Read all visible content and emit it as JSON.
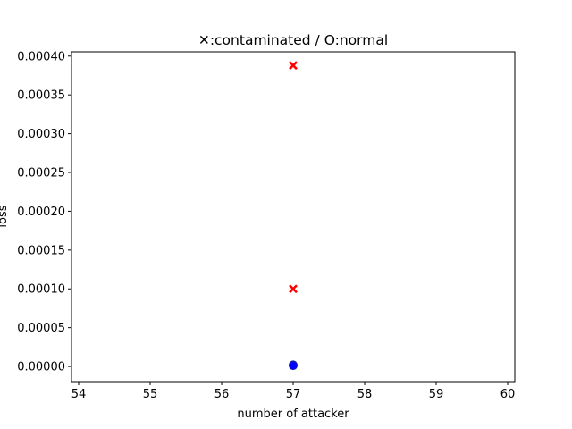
{
  "chart_data": {
    "type": "scatter",
    "title": "✕:contaminated / O:normal",
    "xlabel": "number of attacker",
    "ylabel": "loss",
    "xlim": [
      53.9,
      60.1
    ],
    "ylim": [
      -1.95e-05,
      0.0004055
    ],
    "xticks": [
      54,
      55,
      56,
      57,
      58,
      59,
      60
    ],
    "xtick_labels": [
      "54",
      "55",
      "56",
      "57",
      "58",
      "59",
      "60"
    ],
    "yticks": [
      0,
      5e-05,
      0.0001,
      0.00015,
      0.0002,
      0.00025,
      0.0003,
      0.00035,
      0.0004
    ],
    "ytick_labels": [
      "0.00000",
      "0.00005",
      "0.00010",
      "0.00015",
      "0.00020",
      "0.00025",
      "0.00030",
      "0.00035",
      "0.00040"
    ],
    "grid": false,
    "series": [
      {
        "marker": "x",
        "color": "#ff0000",
        "points": [
          {
            "x": 57,
            "y": 0.000388
          },
          {
            "x": 57,
            "y": 0.0001
          }
        ]
      },
      {
        "marker": "o",
        "color": "#0000ff",
        "points": [
          {
            "x": 57,
            "y": 2e-06
          },
          {
            "x": 57,
            "y": 1e-06
          }
        ]
      }
    ]
  }
}
